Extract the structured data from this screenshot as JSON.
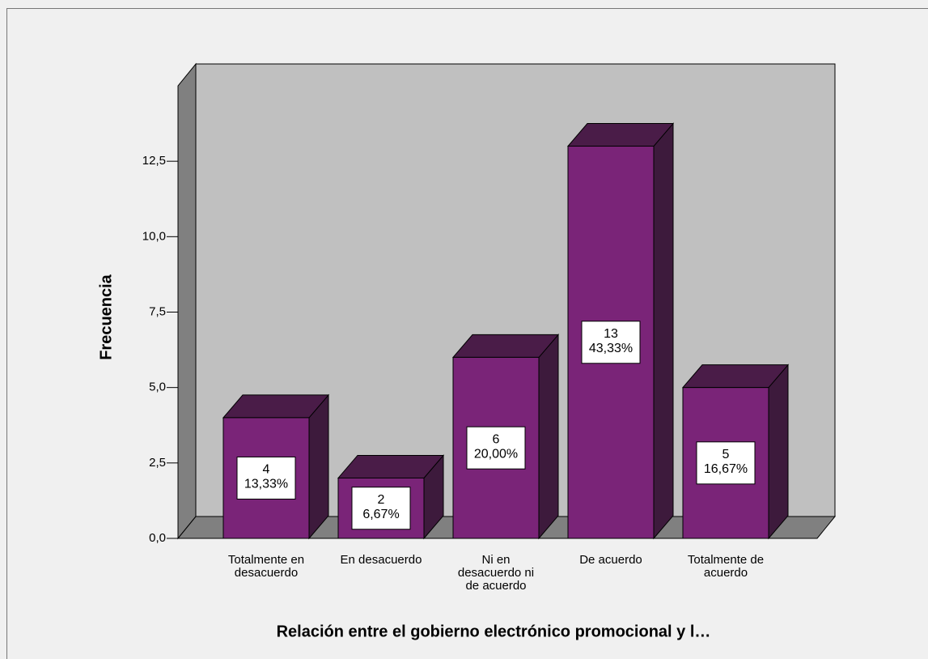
{
  "chart_data": {
    "type": "bar3d",
    "x_label": "Relación entre el gobierno electrónico promocional y l…",
    "y_label": "Frecuencia",
    "categories": [
      "Totalmente en desacuerdo",
      "En desacuerdo",
      "Ni en desacuerdo ni de acuerdo",
      "De acuerdo",
      "Totalmente de acuerdo"
    ],
    "values": [
      4,
      2,
      6,
      13,
      5
    ],
    "percentage_labels": [
      "13,33%",
      "6,67%",
      "20,00%",
      "43,33%",
      "16,67%"
    ],
    "color": "#7a2478",
    "ylim": [
      0,
      15
    ],
    "yticks": [
      {
        "value": 0,
        "label": "0,0"
      },
      {
        "value": 2.5,
        "label": "2,5"
      },
      {
        "value": 5,
        "label": "5,0"
      },
      {
        "value": 7.5,
        "label": "7,5"
      },
      {
        "value": 10,
        "label": "10,0"
      },
      {
        "value": 12.5,
        "label": "12,5"
      }
    ]
  }
}
